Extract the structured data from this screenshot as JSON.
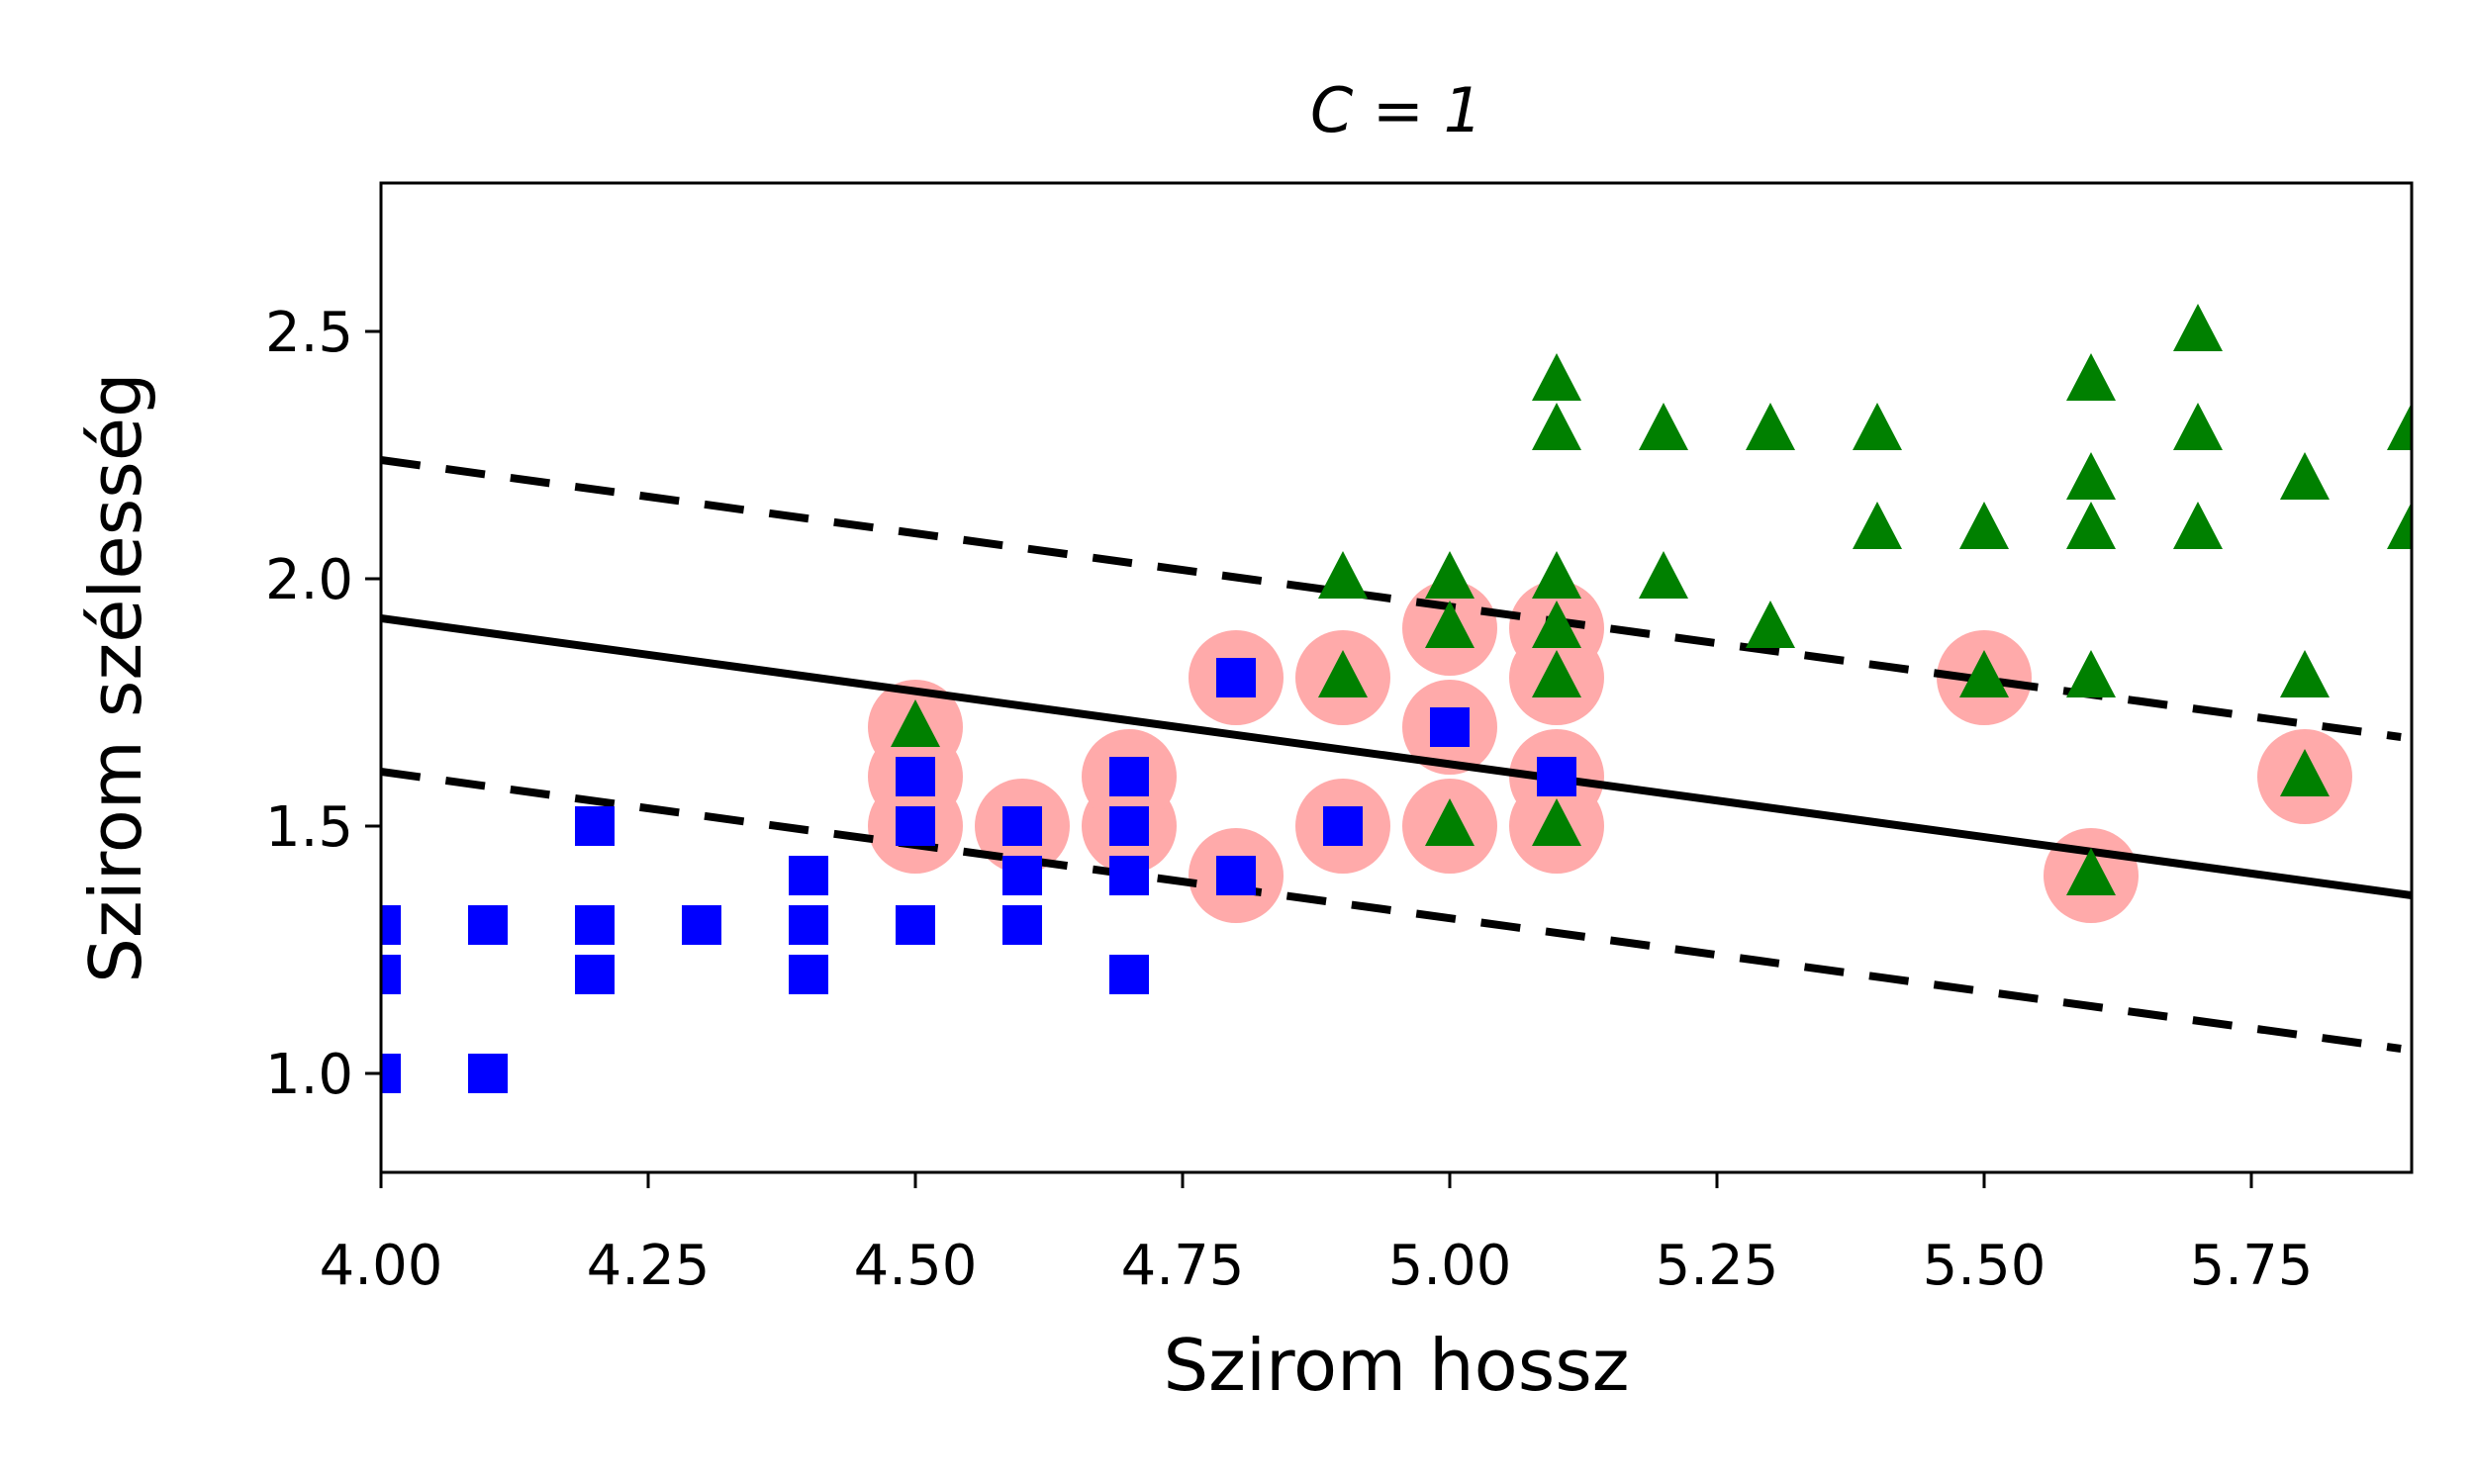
{
  "chart_data": {
    "type": "scatter",
    "title": "C = 1",
    "xlabel": "Szirom hossz",
    "ylabel": "Szirom szélesség",
    "xlim": [
      4.0,
      5.9
    ],
    "ylim": [
      0.8,
      2.8
    ],
    "xticks": [
      "4.00",
      "4.25",
      "4.50",
      "4.75",
      "5.00",
      "5.25",
      "5.50",
      "5.75"
    ],
    "yticks": [
      "1.0",
      "1.5",
      "2.0",
      "2.5"
    ],
    "grid": false,
    "colors": {
      "blue_squares": "#0000ff",
      "green_triangles": "#008000",
      "support_vectors": "#ffaaaa",
      "lines": "#000000"
    },
    "series": [
      {
        "marker": "square",
        "color": "#0000ff",
        "points": [
          [
            4.0,
            1.0
          ],
          [
            4.0,
            1.2
          ],
          [
            4.0,
            1.3
          ],
          [
            4.1,
            1.0
          ],
          [
            4.1,
            1.3
          ],
          [
            4.2,
            1.2
          ],
          [
            4.2,
            1.3
          ],
          [
            4.2,
            1.5
          ],
          [
            4.3,
            1.3
          ],
          [
            4.4,
            1.2
          ],
          [
            4.4,
            1.3
          ],
          [
            4.4,
            1.4
          ],
          [
            4.5,
            1.3
          ],
          [
            4.5,
            1.5
          ],
          [
            4.5,
            1.6
          ],
          [
            4.6,
            1.3
          ],
          [
            4.6,
            1.4
          ],
          [
            4.6,
            1.5
          ],
          [
            4.7,
            1.2
          ],
          [
            4.7,
            1.4
          ],
          [
            4.7,
            1.5
          ],
          [
            4.7,
            1.6
          ],
          [
            4.8,
            1.4
          ],
          [
            4.8,
            1.8
          ],
          [
            4.9,
            1.5
          ],
          [
            5.0,
            1.7
          ],
          [
            5.1,
            1.6
          ]
        ]
      },
      {
        "marker": "triangle",
        "color": "#008000",
        "points": [
          [
            4.5,
            1.7
          ],
          [
            4.9,
            1.8
          ],
          [
            4.9,
            2.0
          ],
          [
            5.0,
            1.5
          ],
          [
            5.0,
            1.9
          ],
          [
            5.0,
            2.0
          ],
          [
            5.1,
            1.5
          ],
          [
            5.1,
            1.8
          ],
          [
            5.1,
            1.9
          ],
          [
            5.1,
            2.0
          ],
          [
            5.1,
            2.3
          ],
          [
            5.1,
            2.4
          ],
          [
            5.2,
            2.0
          ],
          [
            5.2,
            2.3
          ],
          [
            5.3,
            1.9
          ],
          [
            5.3,
            2.3
          ],
          [
            5.4,
            2.1
          ],
          [
            5.4,
            2.3
          ],
          [
            5.5,
            1.8
          ],
          [
            5.5,
            2.1
          ],
          [
            5.6,
            1.4
          ],
          [
            5.6,
            1.8
          ],
          [
            5.6,
            2.1
          ],
          [
            5.6,
            2.2
          ],
          [
            5.6,
            2.4
          ],
          [
            5.7,
            2.1
          ],
          [
            5.7,
            2.3
          ],
          [
            5.7,
            2.5
          ],
          [
            5.8,
            1.6
          ],
          [
            5.8,
            1.8
          ],
          [
            5.8,
            2.2
          ],
          [
            5.9,
            2.1
          ],
          [
            5.9,
            2.3
          ]
        ]
      }
    ],
    "support_vectors": [
      [
        4.5,
        1.5
      ],
      [
        4.5,
        1.6
      ],
      [
        4.5,
        1.7
      ],
      [
        4.6,
        1.5
      ],
      [
        4.7,
        1.5
      ],
      [
        4.7,
        1.6
      ],
      [
        4.8,
        1.4
      ],
      [
        4.8,
        1.8
      ],
      [
        4.9,
        1.5
      ],
      [
        4.9,
        1.8
      ],
      [
        5.0,
        1.5
      ],
      [
        5.0,
        1.7
      ],
      [
        5.0,
        1.9
      ],
      [
        5.1,
        1.5
      ],
      [
        5.1,
        1.6
      ],
      [
        5.1,
        1.8
      ],
      [
        5.1,
        1.9
      ],
      [
        5.5,
        1.8
      ],
      [
        5.6,
        1.4
      ],
      [
        5.8,
        1.6
      ]
    ],
    "decision_boundary": {
      "x": [
        4.0,
        5.9
      ],
      "y": [
        1.92,
        1.36
      ]
    },
    "margin_upper": {
      "x": [
        4.0,
        5.89
      ],
      "y": [
        2.24,
        1.68
      ]
    },
    "margin_lower": {
      "x": [
        4.0,
        5.89
      ],
      "y": [
        1.61,
        1.05
      ]
    }
  }
}
